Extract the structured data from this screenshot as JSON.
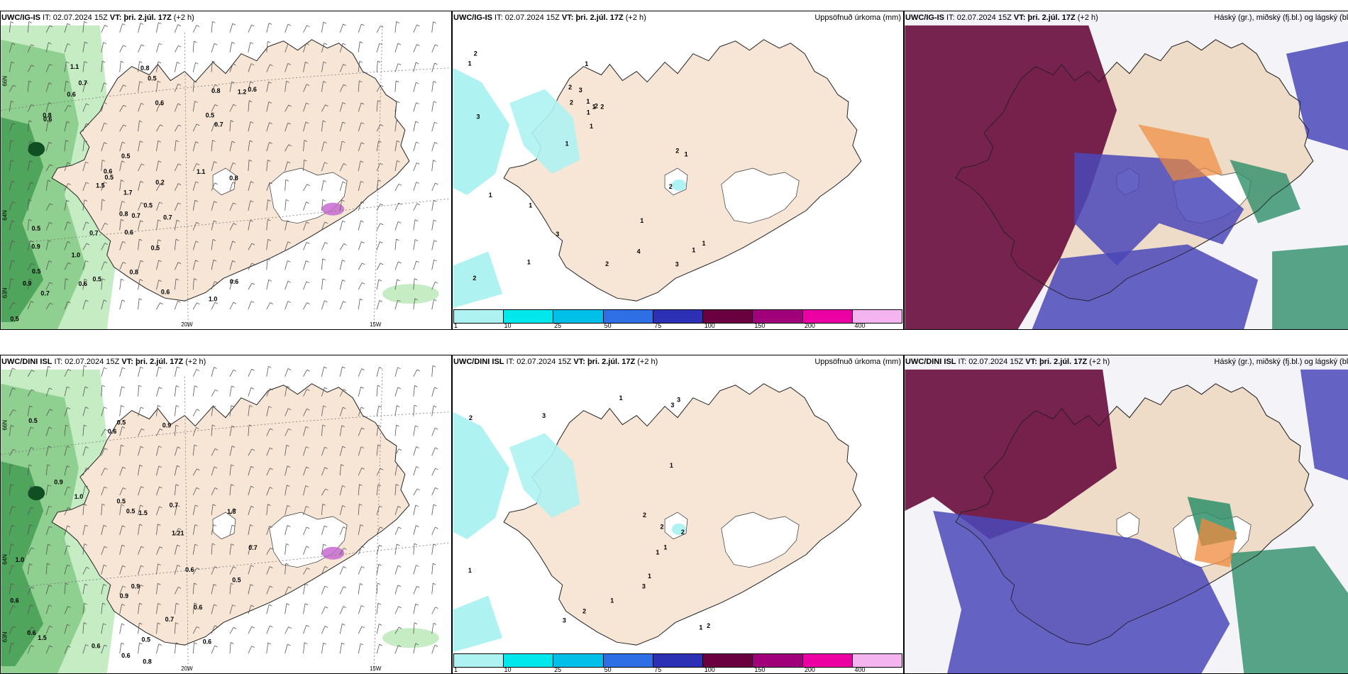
{
  "rows": [
    {
      "panels": [
        {
          "model": "UWC/IG-IS",
          "it_label": "IT:",
          "it": "02.07.2024 15Z",
          "vt_label": "VT:",
          "vt": "þri. 2.júl. 17Z",
          "lead": "(+2 h)",
          "right": ""
        },
        {
          "model": "UWC/IG-IS",
          "it_label": "IT:",
          "it": "02.07.2024 15Z",
          "vt_label": "VT:",
          "vt": "þri. 2.júl. 17Z",
          "lead": "(+2 h)",
          "right": "Uppsöfnuð úrkoma (mm)"
        },
        {
          "model": "UWC/IG-IS",
          "it_label": "IT:",
          "it": "02.07.2024 15Z",
          "vt_label": "VT:",
          "vt": "þri. 2.júl. 17Z",
          "lead": "(+2 h)",
          "right": "Háský (gr.), miðský (fj.bl.) og lágský (bl.)"
        }
      ]
    },
    {
      "panels": [
        {
          "model": "UWC/DINI ISL",
          "it_label": "IT:",
          "it": "02.07.2024 15Z",
          "vt_label": "VT:",
          "vt": "þri. 2.júl. 17Z",
          "lead": "(+2 h)",
          "right": ""
        },
        {
          "model": "UWC/DINI ISL",
          "it_label": "IT:",
          "it": "02.07.2024 15Z",
          "vt_label": "VT:",
          "vt": "þri. 2.júl. 17Z",
          "lead": "(+2 h)",
          "right": "Uppsöfnuð úrkoma (mm)"
        },
        {
          "model": "UWC/DINI ISL",
          "it_label": "IT:",
          "it": "02.07.2024 15Z",
          "vt_label": "VT:",
          "vt": "þri. 2.júl. 17Z",
          "lead": "(+2 h)",
          "right": "Háský (gr.), miðský (fj.bl.) og lágský (bl.)"
        }
      ]
    }
  ],
  "axes": {
    "lon_20": "20W",
    "lon_15": "15W",
    "lat_66": "66N",
    "lat_64": "64N",
    "lat_63": "63N"
  },
  "colorbar": {
    "labels": [
      "1",
      "10",
      "25",
      "50",
      "75",
      "100",
      "150",
      "200",
      "400"
    ],
    "colors": [
      "#aef2f2",
      "#00e8ec",
      "#00bfe8",
      "#2f6fe6",
      "#2b30b5",
      "#6b0040",
      "#a0007a",
      "#ec00a4",
      "#f4b4f0"
    ]
  },
  "map_colors": {
    "land": "#f7e6d6",
    "land_top": "#efdcc8",
    "glacier": "#ffffff",
    "precip_light": "#c6ecc4",
    "precip_mid": "#8fcf8f",
    "precip_dark": "#3f9a4f",
    "precip_darkest": "#0f4f22",
    "sea": "#ffffff",
    "cloud_high": "#6a1040",
    "cloud_mid": "#4a48b8",
    "cloud_low": "#2e8f6a",
    "cloud_orange": "#f08a3c"
  },
  "labels_ws_top": [
    "0.6",
    "0.8",
    "0.5",
    "1.0",
    "0.9",
    "0.6",
    "0.2",
    "0.6",
    "0.7",
    "1.2",
    "0.5",
    "0.7",
    "0.8",
    "0.6",
    "0.5",
    "0.5",
    "0.7",
    "0.7",
    "0.8",
    "0.6",
    "0.5",
    "0.6",
    "1.1",
    "0.5",
    "0.8",
    "0.6",
    "1.0",
    "0.9",
    "1.5",
    "0.8",
    "0.5",
    "0.6",
    "0.8",
    "1.1",
    "0.5",
    "0.6",
    "0.7",
    "0.5",
    "1.7",
    "0.7",
    "0.5"
  ],
  "labels_precip_top": [
    "1",
    "3",
    "2",
    "1",
    "2",
    "3",
    "2",
    "1",
    "1",
    "1",
    "2",
    "2",
    "3",
    "4",
    "1",
    "1",
    "2",
    "2",
    "3",
    "1",
    "1",
    "1",
    "1",
    "2",
    "1",
    "1",
    "1",
    "2"
  ],
  "labels_ws_bottom": [
    "0.9",
    "0.6",
    "0.5",
    "0.6",
    "0.9",
    "0.6",
    "0.6",
    "1.0",
    "0.6",
    "0.5",
    "0.9",
    "1.0",
    "0.5",
    "0.5",
    "1.5",
    "1.5",
    "1.21",
    "0.5",
    "0.6",
    "1.8",
    "0.9",
    "0.6",
    "0.8",
    "0.7",
    "0.5",
    "0.7",
    "0.7",
    "0.6"
  ],
  "labels_precip_bottom": [
    "3",
    "1",
    "2",
    "1",
    "2",
    "2",
    "1",
    "1",
    "2",
    "2",
    "1",
    "1",
    "2",
    "1",
    "3",
    "3",
    "3",
    "3",
    "1"
  ]
}
